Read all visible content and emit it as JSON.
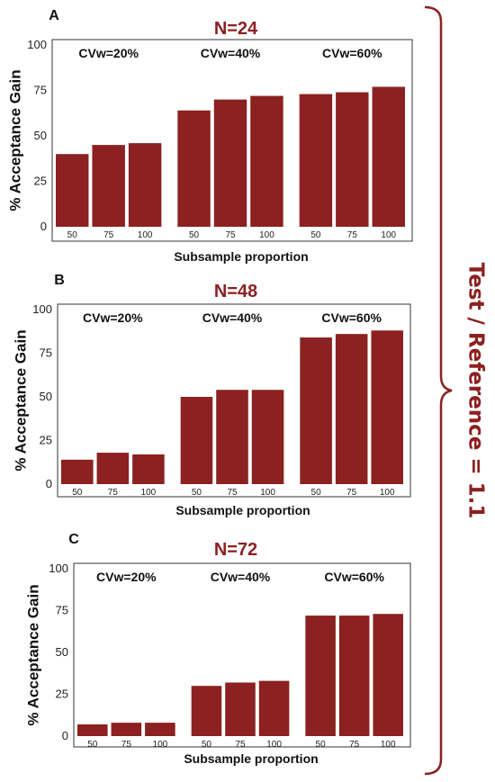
{
  "figure": {
    "side_label": "Test / Reference = 1.1",
    "accent_color": "#8b2120",
    "bar_color": "#8b2120"
  },
  "chart_data": [
    {
      "panel": "A",
      "type": "bar",
      "title": "N=24",
      "xlabel": "Subsample proportion",
      "ylabel": "% Acceptance Gain",
      "ylim": [
        0,
        100
      ],
      "yticks": [
        0,
        25,
        50,
        75,
        100
      ],
      "groups": [
        {
          "label": "CVw=20%",
          "categories": [
            "50",
            "75",
            "100"
          ],
          "values": [
            40,
            45,
            46
          ]
        },
        {
          "label": "CVw=40%",
          "categories": [
            "50",
            "75",
            "100"
          ],
          "values": [
            64,
            70,
            72
          ]
        },
        {
          "label": "CVw=60%",
          "categories": [
            "50",
            "75",
            "100"
          ],
          "values": [
            73,
            74,
            77
          ]
        }
      ]
    },
    {
      "panel": "B",
      "type": "bar",
      "title": "N=48",
      "xlabel": "Subsample proportion",
      "ylabel": "% Acceptance Gain",
      "ylim": [
        0,
        100
      ],
      "yticks": [
        0,
        25,
        50,
        75,
        100
      ],
      "groups": [
        {
          "label": "CVw=20%",
          "categories": [
            "50",
            "75",
            "100"
          ],
          "values": [
            14,
            18,
            17
          ]
        },
        {
          "label": "CVw=40%",
          "categories": [
            "50",
            "75",
            "100"
          ],
          "values": [
            50,
            54,
            54
          ]
        },
        {
          "label": "CVw=60%",
          "categories": [
            "50",
            "75",
            "100"
          ],
          "values": [
            84,
            86,
            88
          ]
        }
      ]
    },
    {
      "panel": "C",
      "type": "bar",
      "title": "N=72",
      "xlabel": "Subsample proportion",
      "ylabel": "% Acceptance Gain",
      "ylim": [
        0,
        100
      ],
      "yticks": [
        0,
        25,
        50,
        75,
        100
      ],
      "groups": [
        {
          "label": "CVw=20%",
          "categories": [
            "50",
            "75",
            "100"
          ],
          "values": [
            7,
            8,
            8
          ]
        },
        {
          "label": "CVw=40%",
          "categories": [
            "50",
            "75",
            "100"
          ],
          "values": [
            30,
            32,
            33
          ]
        },
        {
          "label": "CVw=60%",
          "categories": [
            "50",
            "75",
            "100"
          ],
          "values": [
            72,
            72,
            73
          ]
        }
      ]
    }
  ]
}
